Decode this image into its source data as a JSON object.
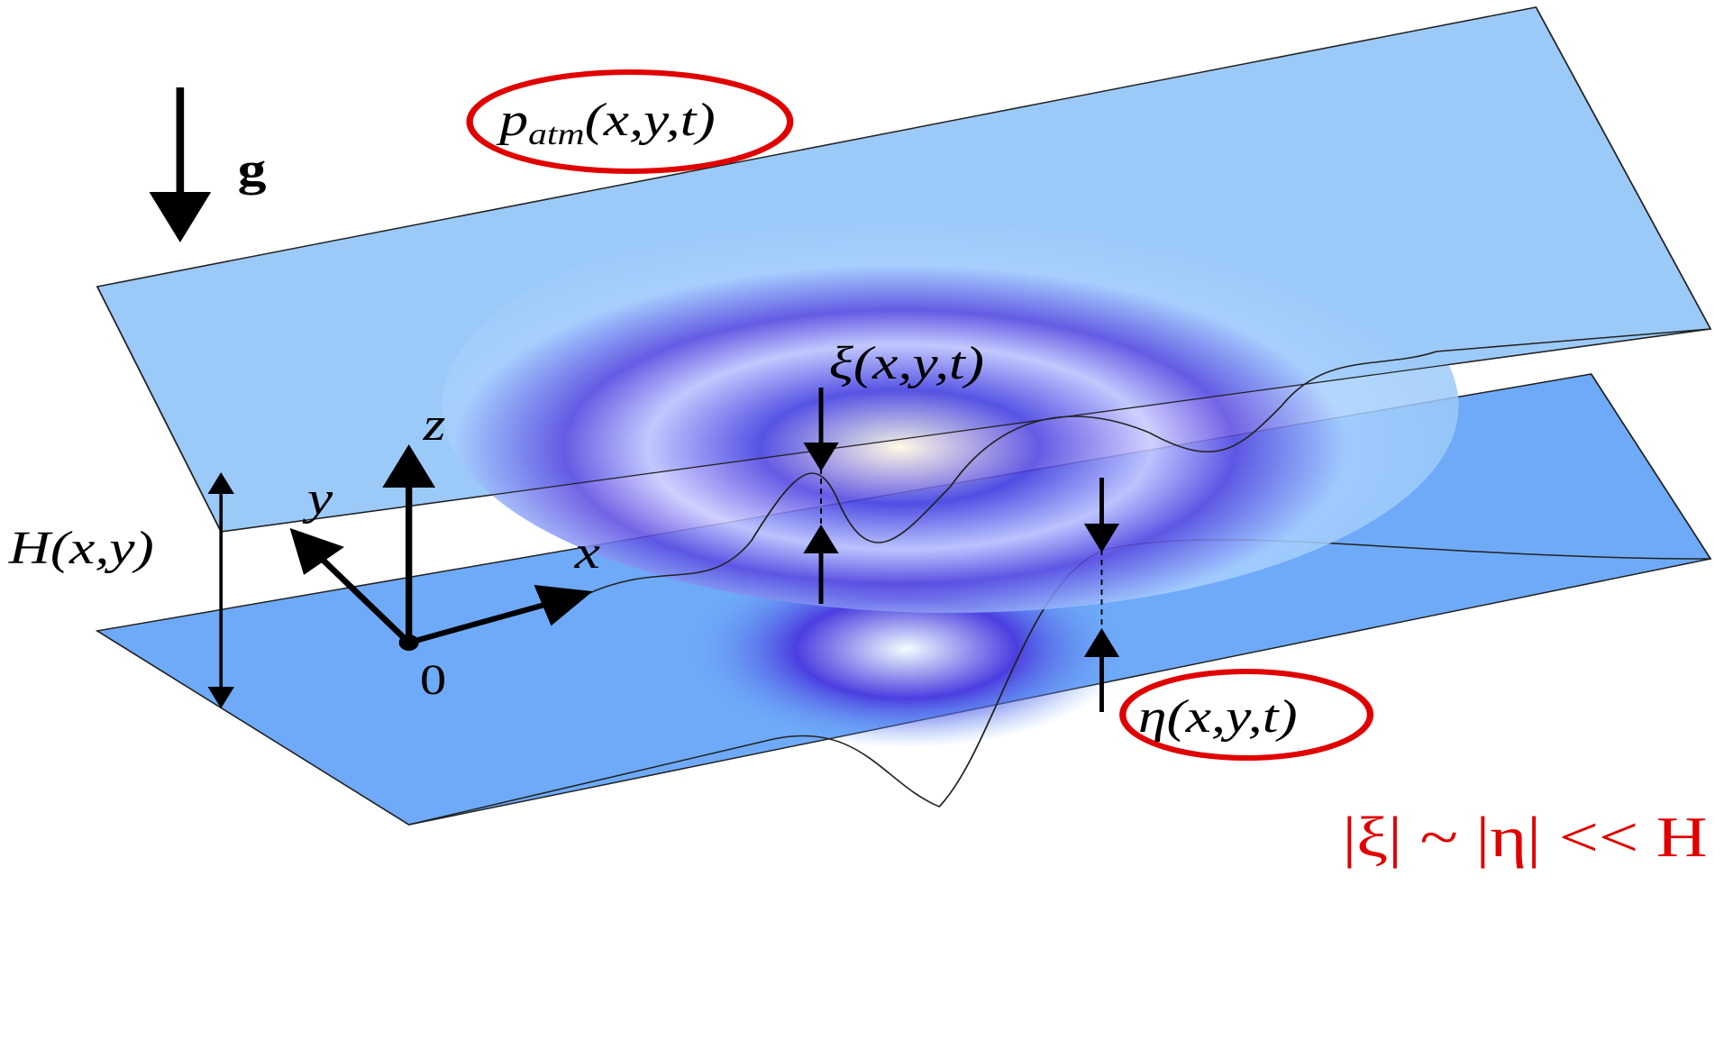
{
  "labels": {
    "pressure": {
      "symbol": "p",
      "subscript": "atm",
      "args": "(x,y,t)"
    },
    "gravity": "g",
    "xi": "ξ(x,y,t)",
    "z_axis": "z",
    "y_axis": "y",
    "x_axis": "x",
    "depth": "H(x,y)",
    "origin": "0",
    "eta": "η(x,y,t)",
    "relation": "|ξ| ~ |η| << H"
  }
}
